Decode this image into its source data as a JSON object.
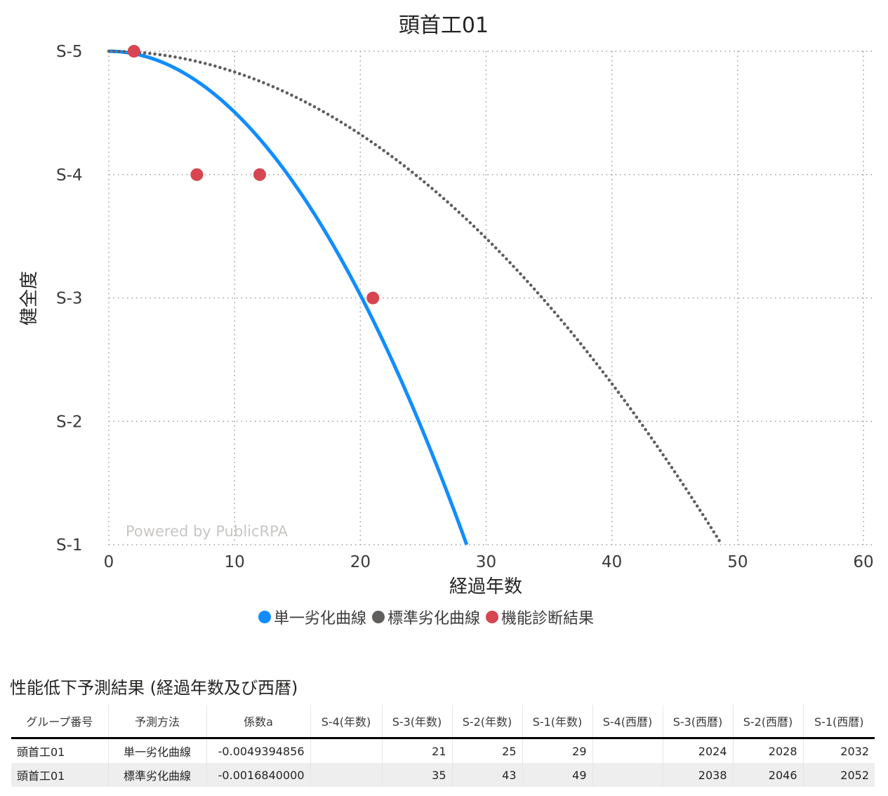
{
  "chart_data": {
    "type": "line",
    "title": "頭首工01",
    "xlabel": "経過年数",
    "ylabel": "健全度",
    "xlim": [
      0,
      60
    ],
    "xticks": [
      0,
      10,
      20,
      30,
      40,
      50,
      60
    ],
    "ylim": [
      1,
      5
    ],
    "yticks": [
      {
        "value": 5,
        "label": "S-5"
      },
      {
        "value": 4,
        "label": "S-4"
      },
      {
        "value": 3,
        "label": "S-3"
      },
      {
        "value": 2,
        "label": "S-2"
      },
      {
        "value": 1,
        "label": "S-1"
      }
    ],
    "grid": true,
    "legend_position": "bottom-center",
    "watermark": "Powered by PublicRPA",
    "series": [
      {
        "name": "単一劣化曲線",
        "type": "curve",
        "coefficient": -0.0049394856,
        "color": "#118DFF",
        "style": "solid"
      },
      {
        "name": "標準劣化曲線",
        "type": "curve",
        "coefficient": -0.001684,
        "color": "#605E5C",
        "style": "dotted"
      },
      {
        "name": "機能診断結果",
        "type": "scatter",
        "color": "#D64550",
        "points": [
          {
            "x": 2,
            "y": 5
          },
          {
            "x": 7,
            "y": 4
          },
          {
            "x": 12,
            "y": 4
          },
          {
            "x": 21,
            "y": 3
          }
        ]
      }
    ]
  },
  "table": {
    "title": "性能低下予測結果 (経過年数及び西暦)",
    "headers": [
      "グループ番号",
      "予測方法",
      "係数a",
      "S-4(年数)",
      "S-3(年数)",
      "S-2(年数)",
      "S-1(年数)",
      "S-4(西暦)",
      "S-3(西暦)",
      "S-2(西暦)",
      "S-1(西暦)"
    ],
    "rows": [
      [
        "頭首工01",
        "単一劣化曲線",
        "-0.0049394856",
        "",
        "21",
        "25",
        "29",
        "",
        "2024",
        "2028",
        "2032"
      ],
      [
        "頭首工01",
        "標準劣化曲線",
        "-0.0016840000",
        "",
        "35",
        "43",
        "49",
        "",
        "2038",
        "2046",
        "2052"
      ]
    ]
  }
}
